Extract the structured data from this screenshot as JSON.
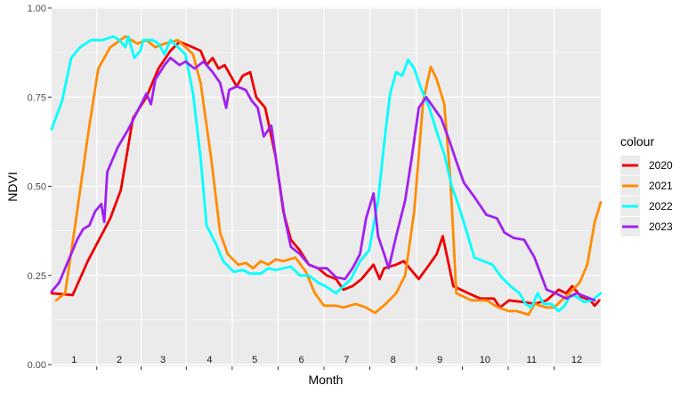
{
  "chart_data": {
    "type": "line",
    "xlabel": "Month",
    "ylabel": "NDVI",
    "ylim": [
      0,
      1
    ],
    "xlim": [
      1,
      366
    ],
    "yticks": [
      "0.00",
      "0.25",
      "0.50",
      "0.75",
      "1.00"
    ],
    "month_labels": [
      "1",
      "2",
      "3",
      "4",
      "5",
      "6",
      "7",
      "8",
      "9",
      "10",
      "11",
      "12"
    ],
    "month_centers": [
      16,
      46,
      75,
      106,
      136,
      167,
      197,
      228,
      259,
      289,
      320,
      350
    ],
    "legend_title": "colour",
    "legend_position": "right",
    "grid": true,
    "series": [
      {
        "name": "2020",
        "color": "#ee0000",
        "points": [
          [
            1,
            0.2
          ],
          [
            15,
            0.195
          ],
          [
            25,
            0.29
          ],
          [
            40,
            0.41
          ],
          [
            47,
            0.49
          ],
          [
            55,
            0.69
          ],
          [
            64,
            0.75
          ],
          [
            72,
            0.83
          ],
          [
            80,
            0.88
          ],
          [
            86,
            0.905
          ],
          [
            92,
            0.895
          ],
          [
            100,
            0.88
          ],
          [
            104,
            0.84
          ],
          [
            108,
            0.86
          ],
          [
            112,
            0.83
          ],
          [
            116,
            0.84
          ],
          [
            120,
            0.81
          ],
          [
            124,
            0.78
          ],
          [
            128,
            0.81
          ],
          [
            133,
            0.82
          ],
          [
            137,
            0.75
          ],
          [
            143,
            0.72
          ],
          [
            150,
            0.58
          ],
          [
            155,
            0.43
          ],
          [
            160,
            0.35
          ],
          [
            166,
            0.32
          ],
          [
            172,
            0.28
          ],
          [
            178,
            0.27
          ],
          [
            184,
            0.25
          ],
          [
            190,
            0.24
          ],
          [
            195,
            0.21
          ],
          [
            201,
            0.22
          ],
          [
            207,
            0.24
          ],
          [
            215,
            0.28
          ],
          [
            219,
            0.24
          ],
          [
            222,
            0.27
          ],
          [
            230,
            0.28
          ],
          [
            235,
            0.29
          ],
          [
            245,
            0.24
          ],
          [
            252,
            0.28
          ],
          [
            257,
            0.31
          ],
          [
            261,
            0.36
          ],
          [
            268,
            0.22
          ],
          [
            273,
            0.21
          ],
          [
            278,
            0.2
          ],
          [
            286,
            0.185
          ],
          [
            295,
            0.185
          ],
          [
            299,
            0.16
          ],
          [
            305,
            0.18
          ],
          [
            315,
            0.175
          ],
          [
            322,
            0.17
          ],
          [
            330,
            0.18
          ],
          [
            338,
            0.21
          ],
          [
            343,
            0.2
          ],
          [
            347,
            0.22
          ],
          [
            353,
            0.19
          ],
          [
            359,
            0.18
          ],
          [
            362,
            0.165
          ],
          [
            365,
            0.18
          ]
        ]
      },
      {
        "name": "2021",
        "color": "#ff8c00",
        "points": [
          [
            4,
            0.18
          ],
          [
            10,
            0.2
          ],
          [
            17,
            0.4
          ],
          [
            25,
            0.64
          ],
          [
            32,
            0.83
          ],
          [
            40,
            0.89
          ],
          [
            50,
            0.92
          ],
          [
            58,
            0.9
          ],
          [
            64,
            0.91
          ],
          [
            70,
            0.89
          ],
          [
            76,
            0.9
          ],
          [
            85,
            0.91
          ],
          [
            95,
            0.87
          ],
          [
            100,
            0.79
          ],
          [
            107,
            0.58
          ],
          [
            113,
            0.37
          ],
          [
            118,
            0.31
          ],
          [
            125,
            0.28
          ],
          [
            130,
            0.285
          ],
          [
            135,
            0.27
          ],
          [
            140,
            0.29
          ],
          [
            145,
            0.28
          ],
          [
            150,
            0.295
          ],
          [
            155,
            0.29
          ],
          [
            163,
            0.3
          ],
          [
            170,
            0.26
          ],
          [
            176,
            0.2
          ],
          [
            182,
            0.165
          ],
          [
            190,
            0.165
          ],
          [
            195,
            0.16
          ],
          [
            203,
            0.17
          ],
          [
            210,
            0.16
          ],
          [
            216,
            0.145
          ],
          [
            223,
            0.17
          ],
          [
            230,
            0.2
          ],
          [
            236,
            0.25
          ],
          [
            242,
            0.43
          ],
          [
            248,
            0.74
          ],
          [
            253,
            0.835
          ],
          [
            257,
            0.8
          ],
          [
            262,
            0.73
          ],
          [
            266,
            0.52
          ],
          [
            270,
            0.2
          ],
          [
            280,
            0.18
          ],
          [
            290,
            0.18
          ],
          [
            298,
            0.16
          ],
          [
            305,
            0.15
          ],
          [
            310,
            0.15
          ],
          [
            318,
            0.14
          ],
          [
            322,
            0.17
          ],
          [
            330,
            0.16
          ],
          [
            335,
            0.16
          ],
          [
            340,
            0.18
          ],
          [
            345,
            0.2
          ],
          [
            352,
            0.23
          ],
          [
            357,
            0.28
          ],
          [
            362,
            0.4
          ],
          [
            366,
            0.455
          ]
        ]
      },
      {
        "name": "2022",
        "color": "#00ffff",
        "points": [
          [
            1,
            0.66
          ],
          [
            8,
            0.74
          ],
          [
            14,
            0.86
          ],
          [
            20,
            0.89
          ],
          [
            27,
            0.91
          ],
          [
            35,
            0.91
          ],
          [
            42,
            0.92
          ],
          [
            46,
            0.91
          ],
          [
            50,
            0.89
          ],
          [
            52,
            0.92
          ],
          [
            56,
            0.86
          ],
          [
            60,
            0.88
          ],
          [
            62,
            0.91
          ],
          [
            68,
            0.91
          ],
          [
            72,
            0.9
          ],
          [
            76,
            0.87
          ],
          [
            80,
            0.91
          ],
          [
            85,
            0.89
          ],
          [
            90,
            0.87
          ],
          [
            95,
            0.76
          ],
          [
            100,
            0.58
          ],
          [
            104,
            0.39
          ],
          [
            110,
            0.34
          ],
          [
            115,
            0.29
          ],
          [
            122,
            0.26
          ],
          [
            128,
            0.265
          ],
          [
            133,
            0.255
          ],
          [
            140,
            0.255
          ],
          [
            145,
            0.27
          ],
          [
            150,
            0.265
          ],
          [
            155,
            0.27
          ],
          [
            160,
            0.275
          ],
          [
            166,
            0.25
          ],
          [
            172,
            0.25
          ],
          [
            178,
            0.23
          ],
          [
            183,
            0.22
          ],
          [
            190,
            0.2
          ],
          [
            195,
            0.22
          ],
          [
            200,
            0.24
          ],
          [
            206,
            0.29
          ],
          [
            212,
            0.32
          ],
          [
            218,
            0.46
          ],
          [
            222,
            0.62
          ],
          [
            226,
            0.76
          ],
          [
            230,
            0.82
          ],
          [
            234,
            0.81
          ],
          [
            238,
            0.855
          ],
          [
            242,
            0.83
          ],
          [
            246,
            0.78
          ],
          [
            252,
            0.72
          ],
          [
            258,
            0.64
          ],
          [
            262,
            0.59
          ],
          [
            267,
            0.5
          ],
          [
            272,
            0.44
          ],
          [
            277,
            0.37
          ],
          [
            282,
            0.3
          ],
          [
            288,
            0.29
          ],
          [
            294,
            0.28
          ],
          [
            300,
            0.245
          ],
          [
            306,
            0.22
          ],
          [
            312,
            0.2
          ],
          [
            316,
            0.17
          ],
          [
            320,
            0.16
          ],
          [
            324,
            0.2
          ],
          [
            328,
            0.17
          ],
          [
            333,
            0.17
          ],
          [
            338,
            0.15
          ],
          [
            342,
            0.165
          ],
          [
            346,
            0.195
          ],
          [
            350,
            0.19
          ],
          [
            355,
            0.175
          ],
          [
            360,
            0.18
          ],
          [
            366,
            0.2
          ]
        ]
      },
      {
        "name": "2023",
        "color": "#a020f0",
        "points": [
          [
            1,
            0.205
          ],
          [
            6,
            0.23
          ],
          [
            12,
            0.29
          ],
          [
            18,
            0.35
          ],
          [
            22,
            0.38
          ],
          [
            26,
            0.39
          ],
          [
            30,
            0.43
          ],
          [
            34,
            0.45
          ],
          [
            36,
            0.4
          ],
          [
            38,
            0.54
          ],
          [
            45,
            0.61
          ],
          [
            52,
            0.66
          ],
          [
            58,
            0.71
          ],
          [
            64,
            0.76
          ],
          [
            67,
            0.73
          ],
          [
            70,
            0.8
          ],
          [
            76,
            0.84
          ],
          [
            80,
            0.86
          ],
          [
            86,
            0.84
          ],
          [
            90,
            0.85
          ],
          [
            96,
            0.83
          ],
          [
            102,
            0.85
          ],
          [
            108,
            0.82
          ],
          [
            113,
            0.79
          ],
          [
            117,
            0.72
          ],
          [
            119,
            0.77
          ],
          [
            124,
            0.78
          ],
          [
            130,
            0.77
          ],
          [
            134,
            0.74
          ],
          [
            138,
            0.72
          ],
          [
            142,
            0.64
          ],
          [
            147,
            0.67
          ],
          [
            152,
            0.52
          ],
          [
            156,
            0.41
          ],
          [
            160,
            0.33
          ],
          [
            166,
            0.31
          ],
          [
            172,
            0.28
          ],
          [
            178,
            0.27
          ],
          [
            184,
            0.27
          ],
          [
            190,
            0.245
          ],
          [
            196,
            0.24
          ],
          [
            201,
            0.27
          ],
          [
            206,
            0.31
          ],
          [
            210,
            0.41
          ],
          [
            215,
            0.48
          ],
          [
            218,
            0.36
          ],
          [
            222,
            0.31
          ],
          [
            225,
            0.27
          ],
          [
            230,
            0.36
          ],
          [
            236,
            0.46
          ],
          [
            240,
            0.57
          ],
          [
            245,
            0.72
          ],
          [
            250,
            0.75
          ],
          [
            255,
            0.72
          ],
          [
            260,
            0.69
          ],
          [
            266,
            0.62
          ],
          [
            270,
            0.57
          ],
          [
            275,
            0.51
          ],
          [
            282,
            0.47
          ],
          [
            290,
            0.42
          ],
          [
            297,
            0.41
          ],
          [
            302,
            0.37
          ],
          [
            308,
            0.355
          ],
          [
            315,
            0.35
          ],
          [
            322,
            0.3
          ],
          [
            330,
            0.21
          ],
          [
            336,
            0.2
          ],
          [
            343,
            0.185
          ],
          [
            350,
            0.2
          ],
          [
            356,
            0.19
          ],
          [
            362,
            0.18
          ]
        ]
      }
    ]
  }
}
